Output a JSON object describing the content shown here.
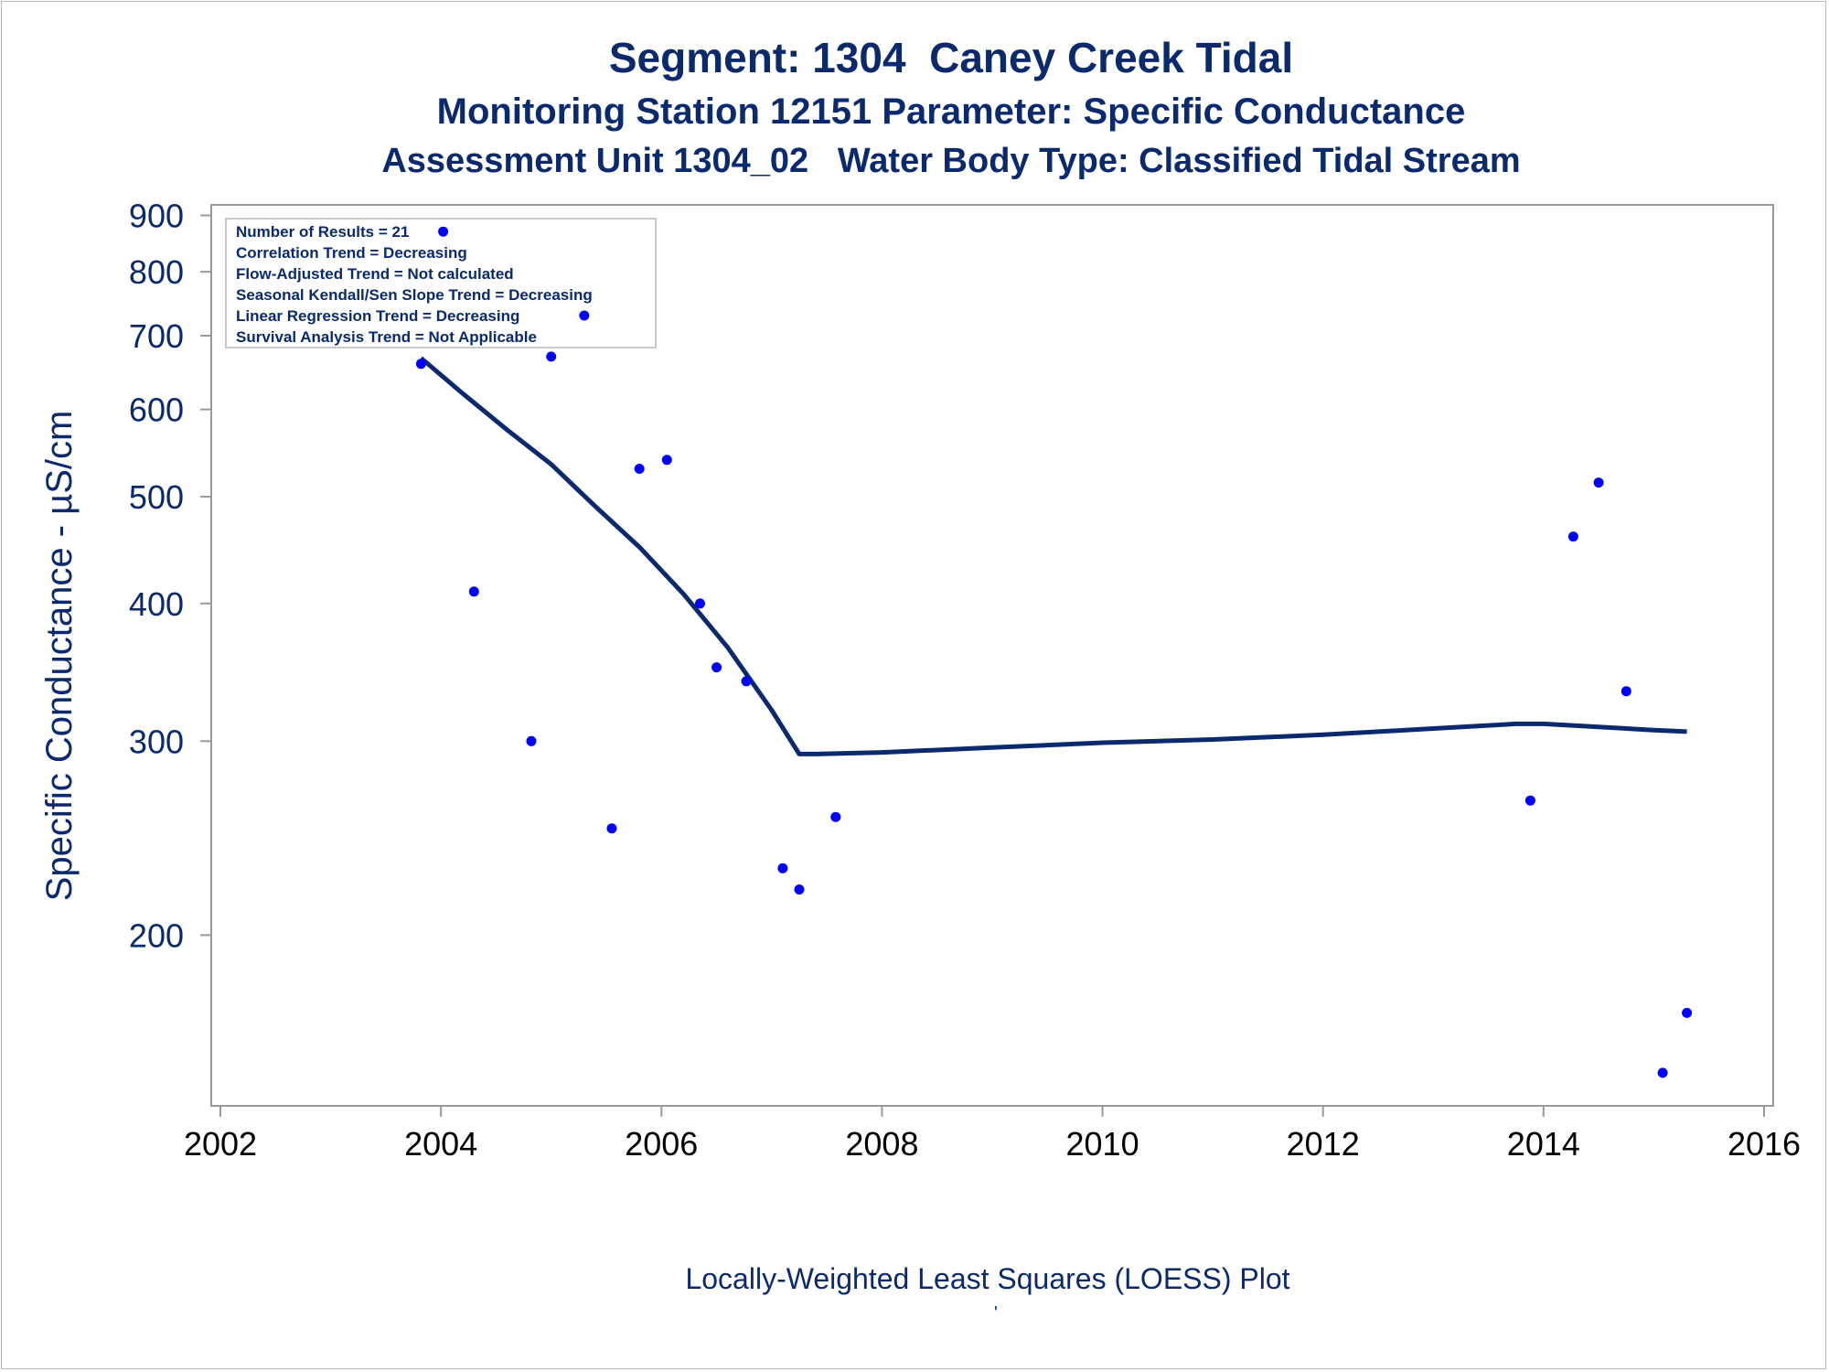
{
  "chart_data": {
    "type": "scatter",
    "title": "Segment: 1304  Caney Creek Tidal",
    "subtitle": "Monitoring Station 12151 Parameter: Specific Conductance",
    "subtitle2": "Assessment Unit 1304_02   Water Body Type: Classified Tidal Stream",
    "xlabel": "",
    "ylabel": "Specific Conductance -  µS/cm",
    "footnote": "Locally-Weighted Least Squares (LOESS) Plot",
    "footnote_mark": "'",
    "y_scale": "log",
    "xlim": [
      2002,
      2016
    ],
    "ylim": [
      140,
      920
    ],
    "x_ticks": [
      2002,
      2004,
      2006,
      2008,
      2010,
      2012,
      2014,
      2016
    ],
    "y_ticks": [
      200,
      300,
      400,
      500,
      600,
      700,
      800,
      900
    ],
    "grid": false,
    "legend_box": {
      "placement": "top-left",
      "lines": [
        "Number of Results = 21",
        "Correlation Trend = Decreasing",
        "Flow-Adjusted Trend = Not calculated",
        "Seasonal Kendall/Sen Slope Trend = Decreasing",
        "Linear Regression Trend = Decreasing",
        "Survival Analysis Trend = Not Applicable"
      ]
    },
    "colors": {
      "points": "#0000ff",
      "loess": "#0b2a6e",
      "text": "#0b2a6e",
      "axis": "#9a9a9a"
    },
    "series": [
      {
        "kind": "points",
        "x": [
          2003.82,
          2004.02,
          2004.3,
          2004.82,
          2005.0,
          2005.3,
          2005.55,
          2005.8,
          2006.05,
          2006.35,
          2006.5,
          2006.77,
          2007.1,
          2007.25,
          2007.58,
          2013.88,
          2014.27,
          2014.5,
          2014.75,
          2015.08,
          2015.3
        ],
        "y": [
          660,
          870,
          410,
          300,
          670,
          730,
          250,
          530,
          540,
          400,
          350,
          340,
          230,
          220,
          256,
          265,
          460,
          515,
          333,
          150,
          170
        ]
      },
      {
        "kind": "loess",
        "x": [
          2003.82,
          2004.2,
          2004.6,
          2005.0,
          2005.4,
          2005.8,
          2006.2,
          2006.6,
          2007.0,
          2007.25,
          2007.4,
          2008.0,
          2009.0,
          2010.0,
          2011.0,
          2012.0,
          2013.0,
          2013.75,
          2014.0,
          2014.5,
          2015.0,
          2015.3
        ],
        "y": [
          668,
          620,
          575,
          535,
          490,
          450,
          408,
          365,
          320,
          292,
          292,
          293,
          296,
          299,
          301,
          304,
          308,
          311,
          311,
          309,
          307,
          306
        ]
      }
    ]
  }
}
